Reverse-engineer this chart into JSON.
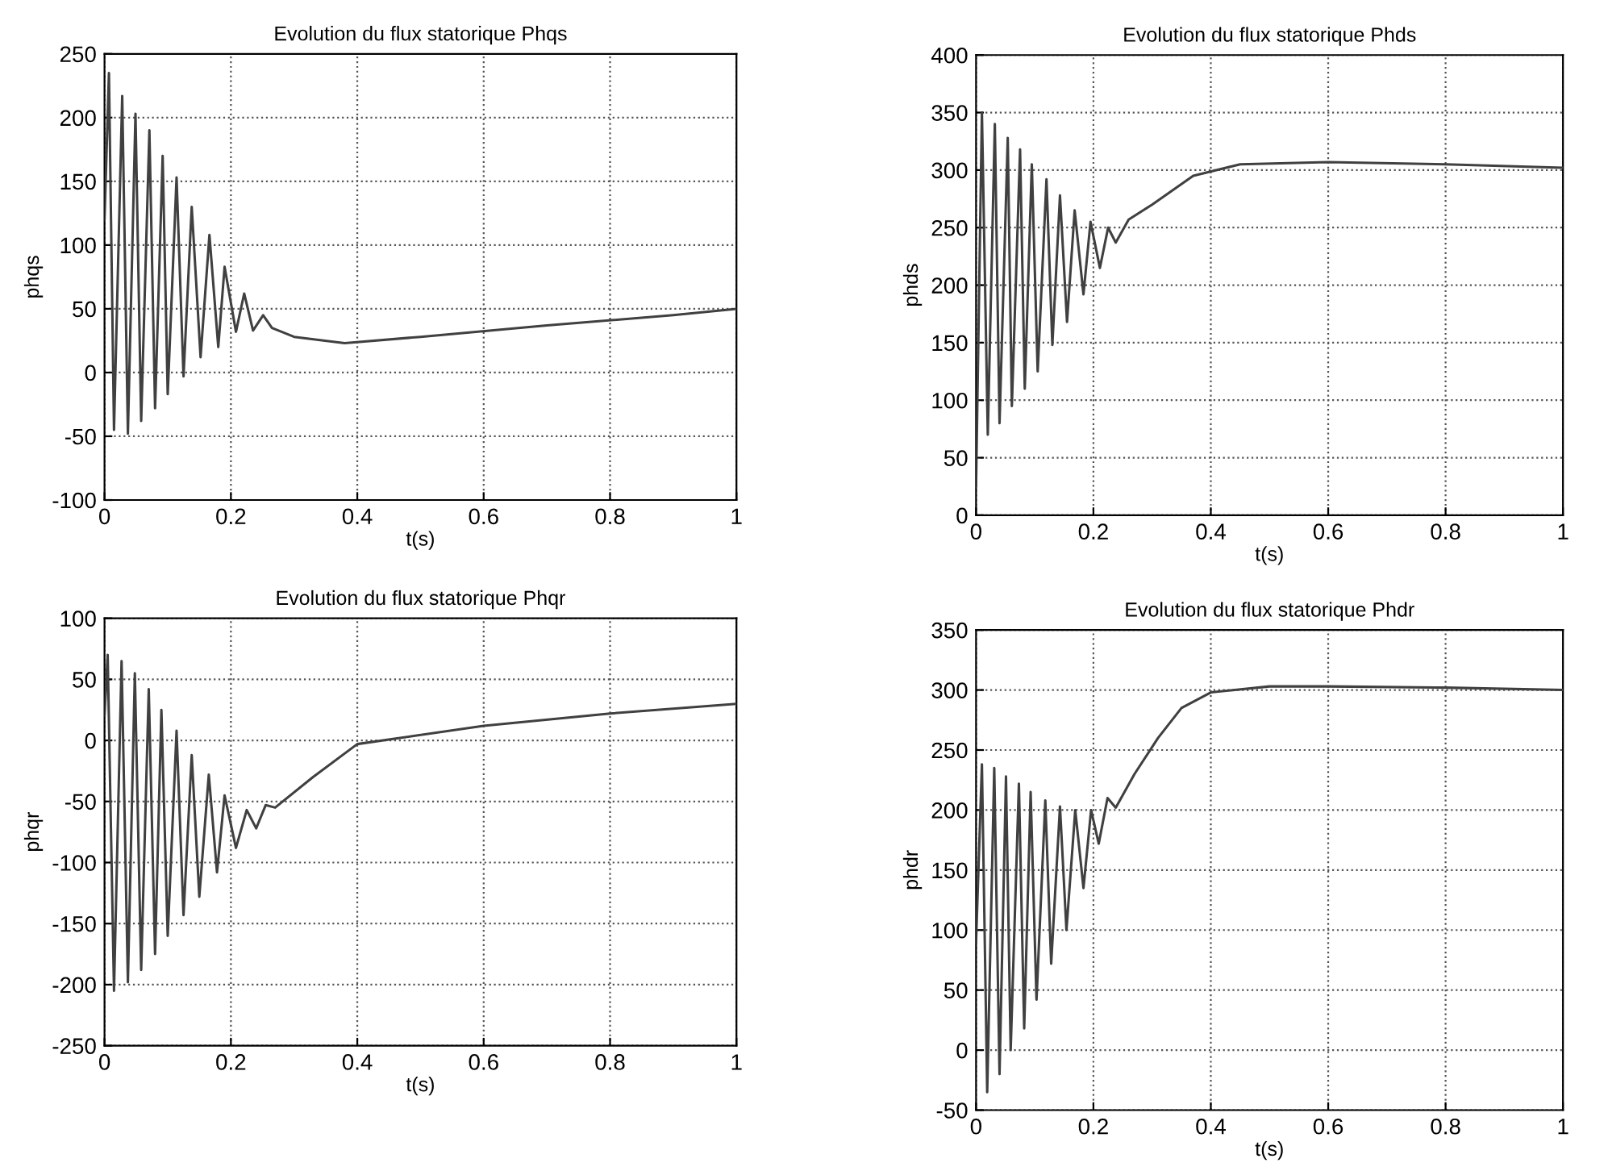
{
  "chart_data": [
    {
      "type": "line",
      "title": "Evolution du flux statorique Phqs",
      "xlabel": "t(s)",
      "ylabel": "phqs",
      "xlim": [
        0,
        1
      ],
      "ylim": [
        -100,
        250
      ],
      "xticks": [
        0,
        0.2,
        0.4,
        0.6,
        0.8,
        1
      ],
      "yticks": [
        -100,
        -50,
        0,
        50,
        100,
        150,
        200,
        250
      ],
      "grid": true,
      "line_style": "solid",
      "series": [
        {
          "color": "#404040",
          "x": [
            0,
            0.007,
            0.015,
            0.028,
            0.037,
            0.049,
            0.058,
            0.071,
            0.08,
            0.092,
            0.1,
            0.114,
            0.125,
            0.138,
            0.152,
            0.166,
            0.18,
            0.19,
            0.208,
            0.221,
            0.235,
            0.251,
            0.265,
            0.3,
            0.38,
            0.5,
            0.7,
            0.9,
            1.0
          ],
          "values": [
            120,
            235,
            -45,
            217,
            -48,
            203,
            -38,
            190,
            -28,
            170,
            -17,
            153,
            -3,
            130,
            12,
            108,
            20,
            83,
            32,
            62,
            33,
            45,
            35,
            28,
            23,
            28,
            37,
            45,
            50
          ]
        }
      ]
    },
    {
      "type": "line",
      "title": "Evolution du flux statorique Phds",
      "xlabel": "t(s)",
      "ylabel": "phds",
      "xlim": [
        0,
        1
      ],
      "ylim": [
        0,
        400
      ],
      "xticks": [
        0,
        0.2,
        0.4,
        0.6,
        0.8,
        1
      ],
      "yticks": [
        0,
        50,
        100,
        150,
        200,
        250,
        300,
        350,
        400
      ],
      "grid": true,
      "line_style": "solid",
      "series": [
        {
          "color": "#404040",
          "x": [
            0,
            0.01,
            0.02,
            0.032,
            0.04,
            0.054,
            0.061,
            0.075,
            0.083,
            0.095,
            0.105,
            0.12,
            0.13,
            0.143,
            0.155,
            0.168,
            0.183,
            0.195,
            0.211,
            0.225,
            0.238,
            0.26,
            0.3,
            0.37,
            0.45,
            0.6,
            0.8,
            1.0
          ],
          "values": [
            25,
            350,
            70,
            340,
            80,
            328,
            95,
            318,
            110,
            305,
            125,
            292,
            148,
            278,
            168,
            265,
            192,
            255,
            215,
            250,
            237,
            257,
            270,
            295,
            305,
            307,
            305,
            302
          ]
        }
      ]
    },
    {
      "type": "line",
      "title": "Evolution du flux statorique Phqr",
      "xlabel": "t(s)",
      "ylabel": "phqr",
      "xlim": [
        0,
        1
      ],
      "ylim": [
        -250,
        100
      ],
      "xticks": [
        0,
        0.2,
        0.4,
        0.6,
        0.8,
        1
      ],
      "yticks": [
        -250,
        -200,
        -150,
        -100,
        -50,
        0,
        50,
        100
      ],
      "grid": true,
      "line_style": "solid",
      "series": [
        {
          "color": "#404040",
          "x": [
            0,
            0.005,
            0.015,
            0.027,
            0.037,
            0.048,
            0.058,
            0.07,
            0.08,
            0.09,
            0.1,
            0.114,
            0.125,
            0.138,
            0.15,
            0.165,
            0.178,
            0.19,
            0.208,
            0.225,
            0.24,
            0.255,
            0.27,
            0.33,
            0.4,
            0.6,
            0.8,
            1.0
          ],
          "values": [
            20,
            70,
            -205,
            65,
            -198,
            55,
            -188,
            42,
            -175,
            25,
            -160,
            8,
            -143,
            -12,
            -128,
            -28,
            -108,
            -45,
            -88,
            -57,
            -72,
            -53,
            -55,
            -30,
            -3,
            12,
            22,
            30
          ]
        }
      ]
    },
    {
      "type": "line",
      "title": "Evolution du flux statorique Phdr",
      "xlabel": "t(s)",
      "ylabel": "phdr",
      "xlim": [
        0,
        1
      ],
      "ylim": [
        -50,
        350
      ],
      "xticks": [
        0,
        0.2,
        0.4,
        0.6,
        0.8,
        1
      ],
      "yticks": [
        -50,
        0,
        50,
        100,
        150,
        200,
        250,
        300,
        350
      ],
      "grid": true,
      "line_style": "solid",
      "series": [
        {
          "color": "#404040",
          "x": [
            0,
            0.01,
            0.019,
            0.031,
            0.04,
            0.051,
            0.059,
            0.073,
            0.082,
            0.093,
            0.103,
            0.118,
            0.128,
            0.143,
            0.154,
            0.169,
            0.183,
            0.196,
            0.209,
            0.224,
            0.238,
            0.27,
            0.31,
            0.35,
            0.4,
            0.5,
            0.6,
            0.8,
            1.0
          ],
          "values": [
            90,
            238,
            -35,
            235,
            -20,
            228,
            0,
            222,
            18,
            215,
            42,
            208,
            72,
            203,
            100,
            200,
            135,
            200,
            172,
            210,
            202,
            230,
            260,
            285,
            298,
            303,
            303,
            302,
            300
          ]
        }
      ]
    }
  ]
}
